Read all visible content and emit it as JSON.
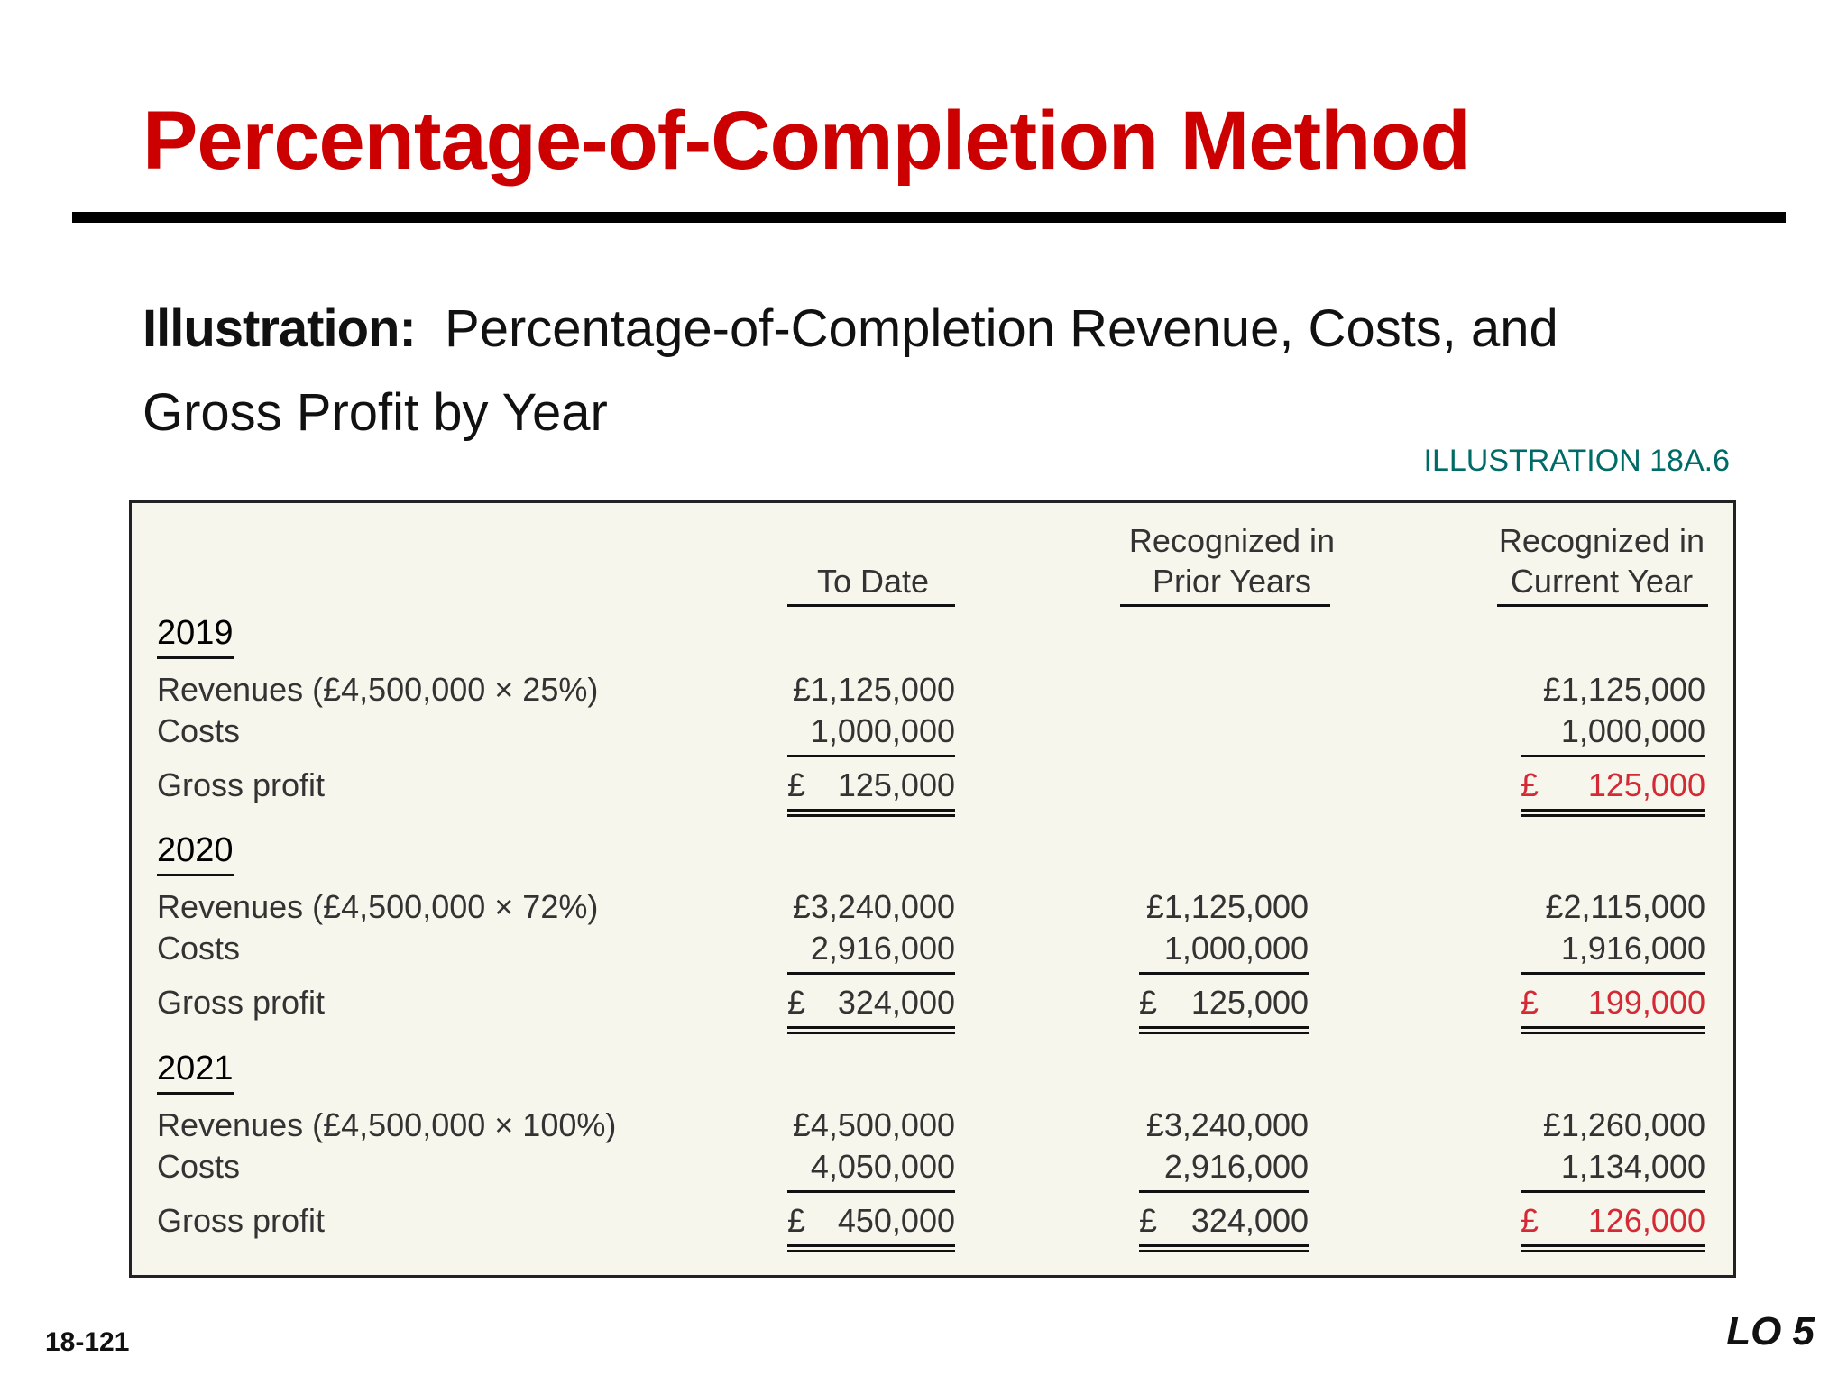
{
  "title": "Percentage-of-Completion Method",
  "subtitle": {
    "label": "Illustration:",
    "text": "Percentage-of-Completion Revenue, Costs, and Gross Profit by Year"
  },
  "illustration_id": "ILLUSTRATION 18A.6",
  "columns": {
    "to_date": "To Date",
    "prior_line1": "Recognized in",
    "prior_line2": "Prior Years",
    "current_line1": "Recognized in",
    "current_line2": "Current Year"
  },
  "years": [
    {
      "year": "2019",
      "revenue_label": "Revenues (£4,500,000 × 25%)",
      "costs_label": "Costs",
      "profit_label": "Gross profit",
      "to_date": {
        "revenue": "£1,125,000",
        "costs": "1,000,000",
        "profit_symbol": "£",
        "profit": "125,000"
      },
      "prior": {
        "revenue": "",
        "costs": "",
        "profit_symbol": "",
        "profit": ""
      },
      "current": {
        "revenue": "£1,125,000",
        "costs": "1,000,000",
        "profit_symbol": "£",
        "profit": "125,000"
      }
    },
    {
      "year": "2020",
      "revenue_label": "Revenues (£4,500,000 × 72%)",
      "costs_label": "Costs",
      "profit_label": "Gross profit",
      "to_date": {
        "revenue": "£3,240,000",
        "costs": "2,916,000",
        "profit_symbol": "£",
        "profit": "324,000"
      },
      "prior": {
        "revenue": "£1,125,000",
        "costs": "1,000,000",
        "profit_symbol": "£",
        "profit": "125,000"
      },
      "current": {
        "revenue": "£2,115,000",
        "costs": "1,916,000",
        "profit_symbol": "£",
        "profit": "199,000"
      }
    },
    {
      "year": "2021",
      "revenue_label": "Revenues (£4,500,000 × 100%)",
      "costs_label": "Costs",
      "profit_label": "Gross profit",
      "to_date": {
        "revenue": "£4,500,000",
        "costs": "4,050,000",
        "profit_symbol": "£",
        "profit": "450,000"
      },
      "prior": {
        "revenue": "£3,240,000",
        "costs": "2,916,000",
        "profit_symbol": "£",
        "profit": "324,000"
      },
      "current": {
        "revenue": "£1,260,000",
        "costs": "1,134,000",
        "profit_symbol": "£",
        "profit": "126,000"
      }
    }
  ],
  "footer": {
    "page_number": "18-121",
    "lo": "LO 5"
  },
  "colors": {
    "title": "#cc0000",
    "current_year_profit": "#d42a36",
    "illustration_id": "#006b66",
    "panel_bg": "#f7f6ec"
  }
}
